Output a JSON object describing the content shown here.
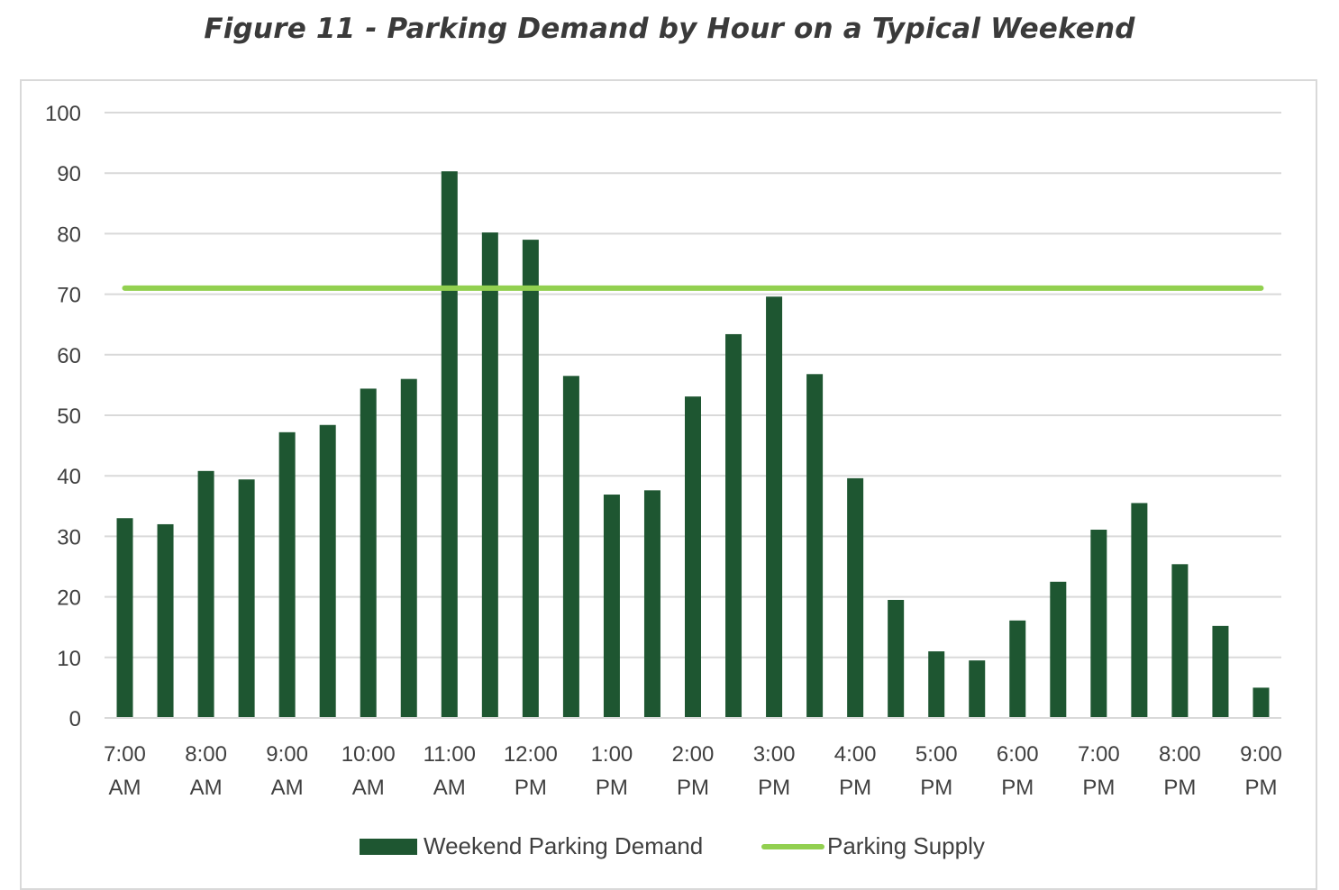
{
  "chart_data": {
    "type": "bar",
    "title": "Figure 11 - Parking Demand by Hour on a Typical Weekend",
    "xlabel": "",
    "ylabel": "",
    "ylim": [
      0,
      100
    ],
    "yticks": [
      0,
      10,
      20,
      30,
      40,
      50,
      60,
      70,
      80,
      90,
      100
    ],
    "grid": true,
    "legend_position": "bottom",
    "x_tick_labels": [
      [
        "7:00",
        "AM"
      ],
      [
        "8:00",
        "AM"
      ],
      [
        "9:00",
        "AM"
      ],
      [
        "10:00",
        "AM"
      ],
      [
        "11:00",
        "AM"
      ],
      [
        "12:00",
        "PM"
      ],
      [
        "1:00",
        "PM"
      ],
      [
        "2:00",
        "PM"
      ],
      [
        "3:00",
        "PM"
      ],
      [
        "4:00",
        "PM"
      ],
      [
        "5:00",
        "PM"
      ],
      [
        "6:00",
        "PM"
      ],
      [
        "7:00",
        "PM"
      ],
      [
        "8:00",
        "PM"
      ],
      [
        "9:00",
        "PM"
      ]
    ],
    "series": [
      {
        "name": "Weekend Parking Demand",
        "kind": "bar",
        "color": "#1e5631",
        "values": [
          33,
          32,
          40.8,
          39.4,
          47.2,
          48.4,
          54.4,
          56,
          90.3,
          80.2,
          79,
          56.5,
          36.9,
          37.6,
          53.1,
          63.4,
          69.6,
          56.8,
          39.6,
          19.5,
          11,
          9.5,
          16.1,
          22.5,
          31.1,
          35.5,
          25.4,
          15.2,
          5
        ]
      },
      {
        "name": "Parking Supply",
        "kind": "line",
        "color": "#92d050",
        "values": [
          71,
          71,
          71,
          71,
          71,
          71,
          71,
          71,
          71,
          71,
          71,
          71,
          71,
          71,
          71,
          71,
          71,
          71,
          71,
          71,
          71,
          71,
          71,
          71,
          71,
          71,
          71,
          71,
          71
        ]
      }
    ]
  }
}
